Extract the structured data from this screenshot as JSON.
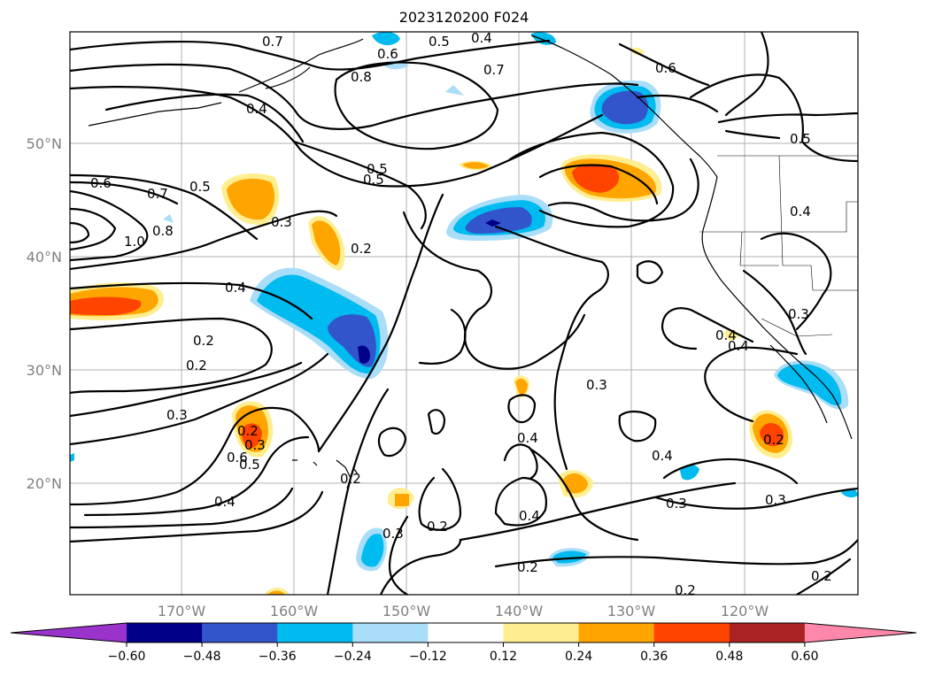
{
  "title": "2023120200 F024",
  "lat_labels": [
    "50°N",
    "40°N",
    "30°N",
    "20°N"
  ],
  "lon_labels": [
    "170°W",
    "160°W",
    "150°W",
    "140°W",
    "130°W",
    "120°W"
  ],
  "colorbar": {
    "ticks": [
      "−0.60",
      "−0.48",
      "−0.36",
      "−0.24",
      "−0.12",
      "0.12",
      "0.24",
      "0.36",
      "0.48",
      "0.60"
    ],
    "colors": [
      "#9933cc",
      "#000088",
      "#3355cc",
      "#00bbf0",
      "#aaddf8",
      "#ffffff",
      "#ffee90",
      "#ffa500",
      "#ff4400",
      "#aa2222",
      "#ff88aa"
    ]
  },
  "contour_labels": [
    "0.7",
    "0.5",
    "0.4",
    "0.6",
    "0.8",
    "0.4",
    "0.7",
    "0.6",
    "0.5",
    "0.6",
    "0.7",
    "0.5",
    "0.8",
    "1.0",
    "0.3",
    "0.2",
    "0.5",
    "0.4",
    "0.4",
    "0.2",
    "0.3",
    "0.3",
    "0.5",
    "0.6",
    "0.4",
    "0.2",
    "0.3",
    "0.2",
    "0.4",
    "0.4",
    "0.2",
    "0.4",
    "0.3",
    "0.4",
    "0.3",
    "0.2",
    "0.3",
    "0.2",
    "0.2",
    "0.2",
    "0.3",
    "0.4",
    "0.5",
    "0.2"
  ]
}
